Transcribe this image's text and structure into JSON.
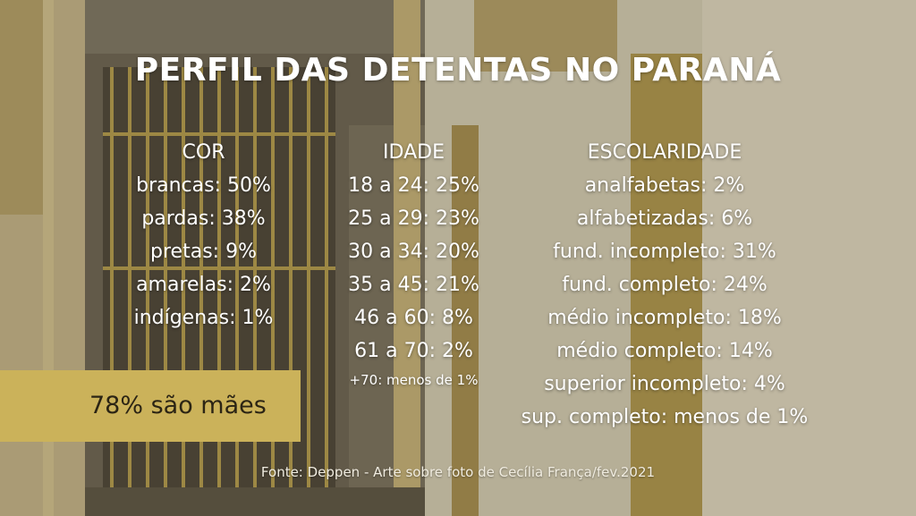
{
  "title": "PERFIL DAS DETENTAS NO PARANÁ",
  "cor": {
    "heading": "COR",
    "items": [
      "brancas: 50%",
      "pardas: 38%",
      "pretas: 9%",
      "amarelas: 2%",
      "indígenas: 1%"
    ]
  },
  "idade": {
    "heading": "IDADE",
    "items": [
      "18 a 24: 25%",
      "25 a 29: 23%",
      "30 a 34: 20%",
      "35 a 45: 21%",
      "46 a 60: 8%",
      "61 a 70: 2%"
    ],
    "note": "+70: menos de 1%"
  },
  "escolaridade": {
    "heading": "ESCOLARIDADE",
    "items": [
      "analfabetas: 2%",
      "alfabetizadas: 6%",
      "fund. incompleto: 31%",
      "fund. completo: 24%",
      "médio incompleto: 18%",
      "médio completo: 14%",
      "superior incompleto: 4%",
      "sup. completo: menos de 1%"
    ]
  },
  "highlight": "78% são mães",
  "source": "Fonte: Deppen - Arte sobre foto de Cecília França/fev.2021",
  "colors": {
    "highlight_box": "#cbb25a",
    "text": "#ffffff"
  }
}
